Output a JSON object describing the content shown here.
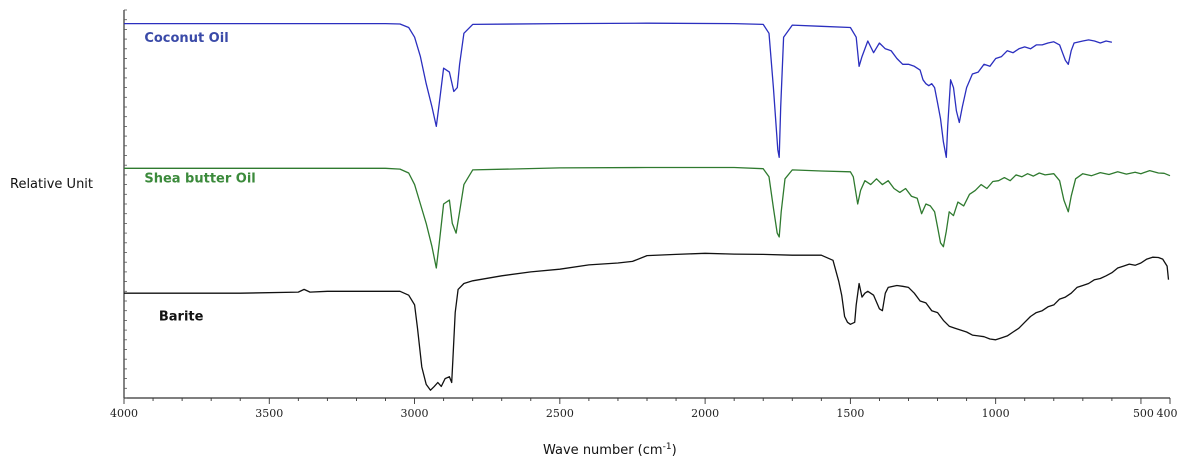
{
  "chart_data": {
    "type": "line",
    "title": "",
    "xlabel": "Wave number (cm",
    "xlabel_unit_superscript": "-1",
    "xlabel_suffix": ")",
    "ylabel": "Relative Unit",
    "xlim": [
      4000,
      400
    ],
    "x_reversed": true,
    "y_axis_ticks_labeled": false,
    "grid": false,
    "xticks": [
      4000,
      3500,
      3000,
      2500,
      2000,
      1500,
      1000,
      500,
      400
    ],
    "xtick_labels": [
      "4000",
      "3500",
      "3000",
      "2500",
      "2000",
      "1500",
      "1000",
      "500",
      "400"
    ],
    "ylim": [
      0,
      100
    ],
    "series": [
      {
        "name": "Coconut Oil",
        "color": "#2b2fbf",
        "label_color": "#3a4aa8",
        "points": [
          [
            4000,
            96.5
          ],
          [
            3100,
            96.5
          ],
          [
            3050,
            96.4
          ],
          [
            3020,
            95.5
          ],
          [
            3000,
            93
          ],
          [
            2980,
            88
          ],
          [
            2960,
            81
          ],
          [
            2940,
            75
          ],
          [
            2925,
            70
          ],
          [
            2915,
            76
          ],
          [
            2900,
            85
          ],
          [
            2880,
            84
          ],
          [
            2865,
            79
          ],
          [
            2853,
            80
          ],
          [
            2845,
            86
          ],
          [
            2830,
            94
          ],
          [
            2800,
            96.3
          ],
          [
            2500,
            96.5
          ],
          [
            2200,
            96.6
          ],
          [
            1900,
            96.5
          ],
          [
            1800,
            96.3
          ],
          [
            1780,
            94
          ],
          [
            1765,
            80
          ],
          [
            1750,
            64
          ],
          [
            1745,
            62
          ],
          [
            1740,
            75
          ],
          [
            1730,
            93
          ],
          [
            1700,
            96.1
          ],
          [
            1600,
            95.8
          ],
          [
            1500,
            95.5
          ],
          [
            1480,
            93
          ],
          [
            1470,
            85.5
          ],
          [
            1460,
            88
          ],
          [
            1440,
            92
          ],
          [
            1420,
            89
          ],
          [
            1400,
            91.5
          ],
          [
            1380,
            90
          ],
          [
            1360,
            89.5
          ],
          [
            1340,
            87.5
          ],
          [
            1320,
            86
          ],
          [
            1300,
            86
          ],
          [
            1280,
            85.5
          ],
          [
            1260,
            84.5
          ],
          [
            1250,
            82
          ],
          [
            1240,
            81
          ],
          [
            1230,
            80.5
          ],
          [
            1220,
            81
          ],
          [
            1210,
            80
          ],
          [
            1200,
            76
          ],
          [
            1190,
            72
          ],
          [
            1180,
            66
          ],
          [
            1170,
            62
          ],
          [
            1165,
            70
          ],
          [
            1155,
            82
          ],
          [
            1145,
            80
          ],
          [
            1135,
            74
          ],
          [
            1125,
            71
          ],
          [
            1115,
            75
          ],
          [
            1100,
            80
          ],
          [
            1080,
            83.5
          ],
          [
            1060,
            84
          ],
          [
            1040,
            86
          ],
          [
            1020,
            85.5
          ],
          [
            1000,
            87.5
          ],
          [
            980,
            88
          ],
          [
            960,
            89.5
          ],
          [
            940,
            89
          ],
          [
            920,
            90
          ],
          [
            900,
            90.5
          ],
          [
            880,
            90
          ],
          [
            860,
            91
          ],
          [
            840,
            91
          ],
          [
            820,
            91.5
          ],
          [
            800,
            91.8
          ],
          [
            780,
            91
          ],
          [
            770,
            89
          ],
          [
            760,
            87
          ],
          [
            750,
            86
          ],
          [
            740,
            89.5
          ],
          [
            730,
            91.5
          ],
          [
            700,
            92
          ],
          [
            680,
            92.3
          ],
          [
            660,
            92
          ],
          [
            640,
            91.5
          ],
          [
            620,
            92
          ],
          [
            600,
            91.7
          ]
        ]
      },
      {
        "name": "Shea butter Oil",
        "color": "#2f7a2f",
        "label_color": "#3b8a3b",
        "points": [
          [
            4000,
            59.2
          ],
          [
            3100,
            59.2
          ],
          [
            3050,
            59
          ],
          [
            3020,
            58
          ],
          [
            3000,
            55
          ],
          [
            2980,
            50
          ],
          [
            2960,
            45
          ],
          [
            2940,
            39
          ],
          [
            2925,
            33.5
          ],
          [
            2915,
            40
          ],
          [
            2900,
            50
          ],
          [
            2880,
            51
          ],
          [
            2870,
            45
          ],
          [
            2857,
            42.5
          ],
          [
            2845,
            48
          ],
          [
            2830,
            55
          ],
          [
            2800,
            58.8
          ],
          [
            2500,
            59.3
          ],
          [
            2200,
            59.4
          ],
          [
            1900,
            59.4
          ],
          [
            1800,
            59.1
          ],
          [
            1780,
            57
          ],
          [
            1765,
            49
          ],
          [
            1752,
            42.5
          ],
          [
            1745,
            41.5
          ],
          [
            1738,
            48
          ],
          [
            1725,
            56.5
          ],
          [
            1700,
            58.8
          ],
          [
            1600,
            58.5
          ],
          [
            1500,
            58.3
          ],
          [
            1490,
            57
          ],
          [
            1475,
            50
          ],
          [
            1465,
            53.5
          ],
          [
            1450,
            56
          ],
          [
            1430,
            55
          ],
          [
            1410,
            56.5
          ],
          [
            1390,
            55
          ],
          [
            1370,
            56
          ],
          [
            1350,
            54
          ],
          [
            1330,
            53
          ],
          [
            1310,
            54
          ],
          [
            1290,
            52
          ],
          [
            1270,
            51.5
          ],
          [
            1255,
            47.5
          ],
          [
            1240,
            50
          ],
          [
            1225,
            49.5
          ],
          [
            1210,
            48
          ],
          [
            1200,
            44
          ],
          [
            1190,
            40
          ],
          [
            1180,
            39
          ],
          [
            1170,
            43
          ],
          [
            1160,
            48
          ],
          [
            1145,
            47
          ],
          [
            1130,
            50.5
          ],
          [
            1110,
            49.5
          ],
          [
            1090,
            52.5
          ],
          [
            1070,
            53.5
          ],
          [
            1050,
            55
          ],
          [
            1030,
            54
          ],
          [
            1010,
            55.8
          ],
          [
            990,
            56
          ],
          [
            970,
            56.8
          ],
          [
            950,
            56
          ],
          [
            930,
            57.5
          ],
          [
            910,
            57
          ],
          [
            890,
            57.8
          ],
          [
            870,
            57.2
          ],
          [
            850,
            58
          ],
          [
            830,
            57.5
          ],
          [
            800,
            57.8
          ],
          [
            780,
            56
          ],
          [
            765,
            51
          ],
          [
            750,
            48
          ],
          [
            740,
            52
          ],
          [
            725,
            56.5
          ],
          [
            700,
            57.8
          ],
          [
            670,
            57.3
          ],
          [
            640,
            58.1
          ],
          [
            610,
            57.6
          ],
          [
            580,
            58.3
          ],
          [
            550,
            57.7
          ],
          [
            520,
            58.2
          ],
          [
            500,
            57.8
          ],
          [
            470,
            58.6
          ],
          [
            440,
            58
          ],
          [
            420,
            57.9
          ],
          [
            400,
            57.3
          ]
        ]
      },
      {
        "name": "Barite",
        "color": "#111111",
        "label_color": "#111111",
        "points": [
          [
            4000,
            27
          ],
          [
            3600,
            27
          ],
          [
            3400,
            27.3
          ],
          [
            3380,
            28
          ],
          [
            3360,
            27.3
          ],
          [
            3300,
            27.5
          ],
          [
            3100,
            27.5
          ],
          [
            3050,
            27.5
          ],
          [
            3020,
            26.5
          ],
          [
            3000,
            24
          ],
          [
            2990,
            18
          ],
          [
            2975,
            8
          ],
          [
            2960,
            3.5
          ],
          [
            2945,
            2
          ],
          [
            2932,
            3
          ],
          [
            2920,
            4
          ],
          [
            2908,
            3
          ],
          [
            2895,
            5
          ],
          [
            2880,
            5.5
          ],
          [
            2872,
            4
          ],
          [
            2868,
            10
          ],
          [
            2860,
            22
          ],
          [
            2850,
            28
          ],
          [
            2830,
            29.5
          ],
          [
            2800,
            30.2
          ],
          [
            2700,
            31.5
          ],
          [
            2600,
            32.5
          ],
          [
            2500,
            33.2
          ],
          [
            2400,
            34.3
          ],
          [
            2300,
            34.8
          ],
          [
            2250,
            35.2
          ],
          [
            2200,
            36.7
          ],
          [
            2100,
            37
          ],
          [
            2000,
            37.3
          ],
          [
            1900,
            37.1
          ],
          [
            1800,
            37
          ],
          [
            1700,
            36.8
          ],
          [
            1600,
            36.8
          ],
          [
            1560,
            35.5
          ],
          [
            1540,
            30
          ],
          [
            1530,
            26.5
          ],
          [
            1520,
            21
          ],
          [
            1510,
            19.5
          ],
          [
            1500,
            19
          ],
          [
            1485,
            19.5
          ],
          [
            1480,
            24
          ],
          [
            1470,
            29.5
          ],
          [
            1460,
            26
          ],
          [
            1450,
            27
          ],
          [
            1440,
            27.5
          ],
          [
            1420,
            26.5
          ],
          [
            1400,
            23
          ],
          [
            1390,
            22.5
          ],
          [
            1380,
            27
          ],
          [
            1370,
            28.5
          ],
          [
            1340,
            29
          ],
          [
            1320,
            28.8
          ],
          [
            1300,
            28.5
          ],
          [
            1280,
            27
          ],
          [
            1260,
            25
          ],
          [
            1240,
            24.5
          ],
          [
            1220,
            22.5
          ],
          [
            1200,
            22
          ],
          [
            1180,
            20
          ],
          [
            1160,
            18.5
          ],
          [
            1140,
            18
          ],
          [
            1120,
            17.5
          ],
          [
            1100,
            17
          ],
          [
            1080,
            16.2
          ],
          [
            1060,
            16
          ],
          [
            1040,
            15.8
          ],
          [
            1020,
            15.2
          ],
          [
            1000,
            15
          ],
          [
            980,
            15.5
          ],
          [
            960,
            16
          ],
          [
            940,
            17
          ],
          [
            920,
            18
          ],
          [
            900,
            19.5
          ],
          [
            880,
            21
          ],
          [
            860,
            22
          ],
          [
            840,
            22.5
          ],
          [
            820,
            23.5
          ],
          [
            800,
            24
          ],
          [
            780,
            25.5
          ],
          [
            760,
            26
          ],
          [
            740,
            27
          ],
          [
            720,
            28.5
          ],
          [
            700,
            29
          ],
          [
            680,
            29.5
          ],
          [
            660,
            30.5
          ],
          [
            640,
            30.8
          ],
          [
            620,
            31.5
          ],
          [
            600,
            32.3
          ],
          [
            580,
            33.5
          ],
          [
            560,
            34
          ],
          [
            540,
            34.5
          ],
          [
            520,
            34.2
          ],
          [
            500,
            34.8
          ],
          [
            480,
            35.8
          ],
          [
            460,
            36.3
          ],
          [
            440,
            36.2
          ],
          [
            425,
            35.8
          ],
          [
            410,
            34
          ],
          [
            405,
            30.5
          ]
        ]
      }
    ],
    "series_labels": [
      {
        "text": "Coconut Oil",
        "x": 3930,
        "y": 91.7
      },
      {
        "text": "Shea butter Oil",
        "x": 3930,
        "y": 55.5
      },
      {
        "text": "Barite",
        "x": 3880,
        "y": 20
      }
    ]
  }
}
